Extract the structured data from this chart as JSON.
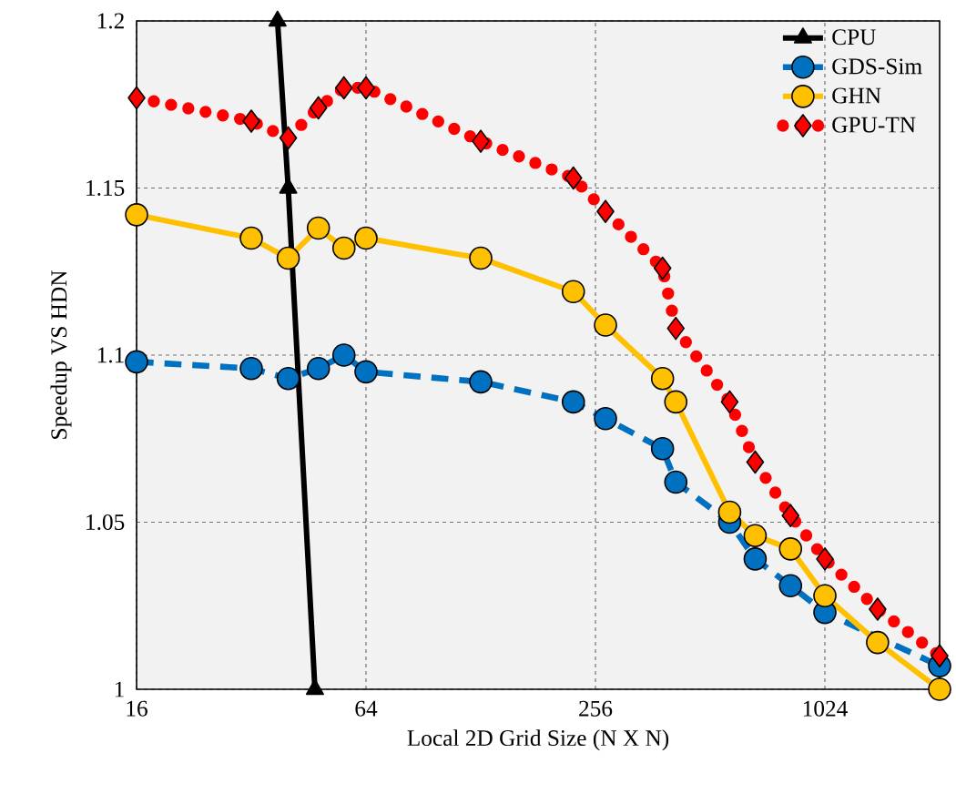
{
  "chart_data": {
    "type": "line",
    "xlabel": "Local 2D Grid Size (N X N)",
    "ylabel": "Speedup VS HDN",
    "x": [
      16,
      32,
      40,
      48,
      56,
      64,
      128,
      224,
      272,
      384,
      416,
      576,
      672,
      832,
      1024,
      1408,
      2048
    ],
    "series": [
      {
        "name": "CPU",
        "color": "#000000",
        "marker": "triangle",
        "line_style": "solid",
        "x": [
          37.5,
          40,
          47
        ],
        "values": [
          1.2,
          1.15,
          1.0
        ]
      },
      {
        "name": "GDS-Sim",
        "color": "#0070c0",
        "marker": "circle",
        "line_style": "dashed",
        "values": [
          1.098,
          1.096,
          1.093,
          1.096,
          1.1,
          1.095,
          1.092,
          1.086,
          1.081,
          1.072,
          1.062,
          1.05,
          1.039,
          1.031,
          1.023,
          null,
          1.007
        ]
      },
      {
        "name": "GHN",
        "color": "#ffc000",
        "marker": "circle",
        "line_style": "solid",
        "values": [
          1.142,
          1.135,
          1.129,
          1.138,
          1.132,
          1.135,
          1.129,
          1.119,
          1.109,
          1.093,
          1.086,
          1.053,
          1.046,
          1.042,
          1.028,
          1.014,
          1.0
        ]
      },
      {
        "name": "GPU-TN",
        "color": "#ff0000",
        "marker": "diamond",
        "line_style": "dotted",
        "values": [
          1.177,
          1.17,
          1.165,
          1.174,
          1.18,
          1.18,
          1.164,
          1.153,
          1.143,
          1.126,
          1.108,
          1.086,
          1.068,
          1.052,
          1.039,
          1.024,
          1.01
        ]
      }
    ],
    "log": "x",
    "xlim": [
      16,
      2048
    ],
    "xticks": [
      16,
      64,
      256,
      1024
    ],
    "ylim": [
      1,
      1.2
    ],
    "yticks": [
      1,
      1.05,
      1.1,
      1.15,
      1.2
    ],
    "grid": true,
    "legend": "top right"
  }
}
